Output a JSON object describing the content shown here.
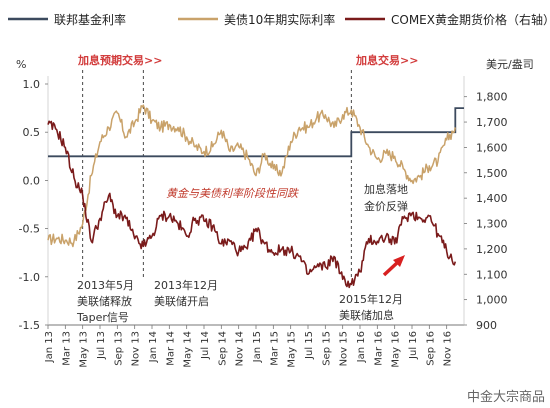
{
  "chart_data": {
    "type": "line",
    "legend_position": "top",
    "source": "中金大宗商品",
    "x_unit": "month",
    "x_tick_labels": [
      "Jan 13",
      "Mar 13",
      "May 13",
      "Jul 13",
      "Sep 13",
      "Nov 13",
      "Jan 14",
      "Mar 14",
      "May 14",
      "Jul 14",
      "Sep 14",
      "Nov 14",
      "Jan 15",
      "Mar 15",
      "May 15",
      "Jul 15",
      "Sep 15",
      "Nov 15",
      "Jan 16",
      "Mar 16",
      "May 16",
      "Jul 16",
      "Sep 16",
      "Nov 16"
    ],
    "y_left": {
      "label": "%",
      "range": [
        -1.5,
        1.0
      ],
      "ticks": [
        -1.5,
        -1.0,
        -0.5,
        0.0,
        0.5,
        1.0
      ],
      "tick_labels": [
        "-1.5",
        "-1.0",
        "-0.5",
        "0.0",
        "0.5",
        "1.0"
      ]
    },
    "y_right": {
      "label": "美元/盎司",
      "range": [
        900,
        1850
      ],
      "ticks": [
        900,
        1000,
        1100,
        1200,
        1300,
        1400,
        1500,
        1600,
        1700,
        1800
      ],
      "tick_labels": [
        "900",
        "1,000",
        "1,100",
        "1,200",
        "1,300",
        "1,400",
        "1,500",
        "1,600",
        "1,700",
        "1,800"
      ]
    },
    "series": [
      {
        "name": "联邦基金利率",
        "axis": "left",
        "color": "#3c4a5e",
        "x": [
          "2013-01",
          "2015-12",
          "2015-12",
          "2016-12",
          "2016-12",
          "2017-01"
        ],
        "values": [
          0.25,
          0.25,
          0.5,
          0.5,
          0.75,
          0.75
        ]
      },
      {
        "name": "美债10年期实际利率",
        "axis": "left",
        "color": "#c9a26a",
        "x": [
          "2013-01",
          "2013-02",
          "2013-03",
          "2013-04",
          "2013-05",
          "2013-06",
          "2013-07",
          "2013-08",
          "2013-09",
          "2013-10",
          "2013-11",
          "2013-12",
          "2014-01",
          "2014-02",
          "2014-03",
          "2014-04",
          "2014-05",
          "2014-06",
          "2014-07",
          "2014-08",
          "2014-09",
          "2014-10",
          "2014-11",
          "2014-12",
          "2015-01",
          "2015-02",
          "2015-03",
          "2015-04",
          "2015-05",
          "2015-06",
          "2015-07",
          "2015-08",
          "2015-09",
          "2015-10",
          "2015-11",
          "2015-12",
          "2016-01",
          "2016-02",
          "2016-03",
          "2016-04",
          "2016-05",
          "2016-06",
          "2016-07",
          "2016-08",
          "2016-09",
          "2016-10",
          "2016-11",
          "2016-12"
        ],
        "values": [
          -0.62,
          -0.6,
          -0.62,
          -0.63,
          -0.45,
          0.05,
          0.4,
          0.55,
          0.7,
          0.45,
          0.6,
          0.78,
          0.62,
          0.55,
          0.58,
          0.55,
          0.45,
          0.35,
          0.3,
          0.35,
          0.52,
          0.3,
          0.35,
          0.25,
          0.05,
          0.28,
          0.12,
          0.08,
          0.4,
          0.55,
          0.55,
          0.65,
          0.68,
          0.55,
          0.68,
          0.73,
          0.55,
          0.35,
          0.22,
          0.28,
          0.25,
          0.12,
          0.0,
          0.05,
          0.15,
          0.2,
          0.42,
          0.55
        ]
      },
      {
        "name": "COMEX黄金期货价格（右轴）",
        "axis": "right",
        "color": "#7a1b1b",
        "x": [
          "2013-01",
          "2013-02",
          "2013-03",
          "2013-04",
          "2013-05",
          "2013-06",
          "2013-07",
          "2013-08",
          "2013-09",
          "2013-10",
          "2013-11",
          "2013-12",
          "2014-01",
          "2014-02",
          "2014-03",
          "2014-04",
          "2014-05",
          "2014-06",
          "2014-07",
          "2014-08",
          "2014-09",
          "2014-10",
          "2014-11",
          "2014-12",
          "2015-01",
          "2015-02",
          "2015-03",
          "2015-04",
          "2015-05",
          "2015-06",
          "2015-07",
          "2015-08",
          "2015-09",
          "2015-10",
          "2015-11",
          "2015-12",
          "2016-01",
          "2016-02",
          "2016-03",
          "2016-04",
          "2016-05",
          "2016-06",
          "2016-07",
          "2016-08",
          "2016-09",
          "2016-10",
          "2016-11",
          "2016-12"
        ],
        "values": [
          1690,
          1670,
          1600,
          1480,
          1410,
          1230,
          1320,
          1410,
          1330,
          1320,
          1240,
          1210,
          1250,
          1330,
          1330,
          1300,
          1250,
          1320,
          1310,
          1290,
          1220,
          1230,
          1190,
          1200,
          1280,
          1220,
          1185,
          1200,
          1190,
          1170,
          1100,
          1130,
          1130,
          1170,
          1080,
          1060,
          1110,
          1240,
          1230,
          1250,
          1220,
          1320,
          1340,
          1320,
          1330,
          1260,
          1190,
          1150
        ]
      }
    ],
    "annotations": [
      {
        "text": "加息预期交易>>",
        "color": "#d23c3c"
      },
      {
        "text": "加息交易>>",
        "color": "#d23c3c"
      },
      {
        "text": "黄金与美债利率阶段性同跌",
        "color": "#c0392b"
      },
      {
        "text": "加息落地",
        "color": "#333333"
      },
      {
        "text": "金价反弹",
        "color": "#333333"
      },
      {
        "text": "2013年5月",
        "color": "#333333"
      },
      {
        "text": "美联储释放",
        "color": "#333333"
      },
      {
        "text": "Taper信号",
        "color": "#333333"
      },
      {
        "text": "2013年12月",
        "color": "#333333"
      },
      {
        "text": "美联储开启",
        "color": "#333333"
      },
      {
        "text": "2015年12月",
        "color": "#333333"
      },
      {
        "text": "美联储加息",
        "color": "#333333"
      }
    ],
    "vlines_at": [
      "2013-05",
      "2013-12",
      "2015-12"
    ],
    "arrow_color": "#d82020"
  }
}
